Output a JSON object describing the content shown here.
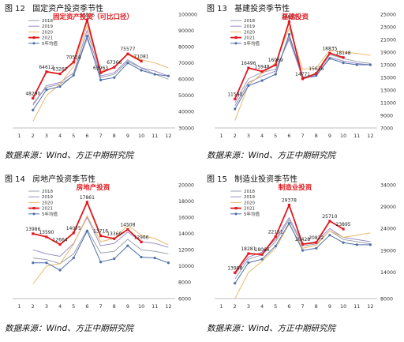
{
  "months": [
    "1",
    "2",
    "3",
    "4",
    "5",
    "6",
    "7",
    "8",
    "9",
    "10",
    "11",
    "12"
  ],
  "series_colors": {
    "2018": "#9aa3b0",
    "2019": "#9b8cc4",
    "2020": "#e9b96a",
    "2021": "#e0191f",
    "5yr": "#4f6fa8"
  },
  "source_text": "数据来源：Wind、方正中期研究院",
  "figures": [
    {
      "label": "图 12",
      "title": "固定资产投资季节性",
      "chart_data": {
        "type": "line",
        "inner_title": "固定资产投资（可比口径）",
        "x": [
          1,
          2,
          3,
          4,
          5,
          6,
          7,
          8,
          9,
          10,
          11,
          12
        ],
        "ylim": [
          30000,
          100000
        ],
        "y_ticks": [
          30000,
          40000,
          50000,
          60000,
          70000,
          80000,
          90000,
          100000
        ],
        "y_axis_side": "right",
        "legend": [
          "2018",
          "2019",
          "2020",
          "2021",
          "5年均值"
        ],
        "series": [
          {
            "name": "2018",
            "values": [
              null,
              45000,
              55000,
              57000,
              62000,
              85000,
              61000,
              63000,
              71000,
              67000,
              63000,
              60000
            ]
          },
          {
            "name": "2019",
            "values": [
              null,
              44000,
              56000,
              58000,
              64000,
              90000,
              62000,
              64000,
              72000,
              67000,
              65000,
              62000
            ]
          },
          {
            "name": "2020",
            "values": [
              null,
              34000,
              50000,
              57000,
              68000,
              93000,
              65000,
              67000,
              76000,
              72000,
              70000,
              67000
            ]
          },
          {
            "name": "2021",
            "values": [
              null,
              48290,
              64612,
              63267,
              70518,
              96526,
              63963,
              67366,
              75577,
              71081,
              null,
              null
            ]
          },
          {
            "name": "5年均值",
            "values": [
              null,
              41000,
              53500,
              55500,
              62500,
              86500,
              59500,
              61000,
              70000,
              65500,
              63000,
              62000
            ]
          }
        ],
        "data_labels": [
          {
            "series": "2021",
            "x": 2,
            "text": "48290"
          },
          {
            "series": "2021",
            "x": 3,
            "text": "64612"
          },
          {
            "series": "2021",
            "x": 4,
            "text": "63267"
          },
          {
            "series": "2021",
            "x": 5,
            "text": "70518"
          },
          {
            "series": "2021",
            "x": 6,
            "text": "96526"
          },
          {
            "series": "2021",
            "x": 7,
            "text": "63963"
          },
          {
            "series": "2021",
            "x": 8,
            "text": "67366"
          },
          {
            "series": "2021",
            "x": 9,
            "text": "75577"
          },
          {
            "series": "2021",
            "x": 10,
            "text": "71081"
          }
        ]
      }
    },
    {
      "label": "图 13",
      "title": "基建投资季节性",
      "chart_data": {
        "type": "line",
        "inner_title": "基建投资",
        "x": [
          1,
          2,
          3,
          4,
          5,
          6,
          7,
          8,
          9,
          10,
          11,
          12
        ],
        "ylim": [
          7000,
          25000
        ],
        "y_ticks": [
          7000,
          9000,
          11000,
          13000,
          15000,
          17000,
          19000,
          21000,
          23000,
          25000
        ],
        "y_axis_side": "right",
        "legend": [
          "2018",
          "2019",
          "2020",
          "2021",
          "5年均值"
        ],
        "series": [
          {
            "name": "2018",
            "values": [
              null,
              11000,
              14800,
              15800,
              16300,
              21000,
              15000,
              15500,
              18600,
              18000,
              17500,
              17200
            ]
          },
          {
            "name": "2019",
            "values": [
              null,
              10500,
              14200,
              15200,
              16000,
              21300,
              14800,
              15200,
              18200,
              17600,
              17200,
              17000
            ]
          },
          {
            "name": "2020",
            "values": [
              null,
              8200,
              13800,
              15600,
              17300,
              22800,
              16300,
              16500,
              19300,
              19000,
              18800,
              18500
            ]
          },
          {
            "name": "2021",
            "values": [
              null,
              11590,
              16496,
              15948,
              16969,
              23832,
              14771,
              15636,
              18835,
              18148,
              null,
              null
            ]
          },
          {
            "name": "5年均值",
            "values": [
              null,
              10000,
              13700,
              14500,
              15500,
              21800,
              15000,
              15300,
              18000,
              17300,
              17000,
              17000
            ]
          }
        ],
        "data_labels": [
          {
            "series": "2021",
            "x": 2,
            "text": "11590"
          },
          {
            "series": "2021",
            "x": 3,
            "text": "16496"
          },
          {
            "series": "2021",
            "x": 4,
            "text": "15948"
          },
          {
            "series": "2021",
            "x": 5,
            "text": "16969"
          },
          {
            "series": "2021",
            "x": 6,
            "text": "23832"
          },
          {
            "series": "2021",
            "x": 7,
            "text": "14771"
          },
          {
            "series": "2021",
            "x": 8,
            "text": "15636"
          },
          {
            "series": "2021",
            "x": 9,
            "text": "18835"
          },
          {
            "series": "2021",
            "x": 10,
            "text": "18148"
          }
        ]
      }
    },
    {
      "label": "图 14",
      "title": "房地产投资季节性",
      "chart_data": {
        "type": "line",
        "inner_title": "房地产投资",
        "x": [
          1,
          2,
          3,
          4,
          5,
          6,
          7,
          8,
          9,
          10,
          11,
          12
        ],
        "ylim": [
          6000,
          20000
        ],
        "y_ticks": [
          6000,
          8000,
          10000,
          12000,
          14000,
          16000,
          18000,
          20000
        ],
        "y_axis_side": "right",
        "legend": [
          "2018",
          "2019",
          "2020",
          "2021",
          "5年均值"
        ],
        "series": [
          {
            "name": "2018",
            "values": [
              null,
              11000,
              10800,
              10300,
              11500,
              14500,
              11600,
              11800,
              13300,
              12000,
              11800,
              11500
            ]
          },
          {
            "name": "2019",
            "values": [
              null,
              12000,
              11500,
              11200,
              12800,
              16000,
              12500,
              12800,
              14200,
              13000,
              12800,
              12300
            ]
          },
          {
            "name": "2020",
            "values": [
              null,
              7800,
              10000,
              10300,
              12700,
              16200,
              13000,
              13400,
              15000,
              13800,
              13400,
              12600
            ]
          },
          {
            "name": "2021",
            "values": [
              null,
              13986,
              13590,
              12664,
              14075,
              17861,
              13716,
              13369,
              14508,
              12966,
              null,
              null
            ]
          },
          {
            "name": "5年均值",
            "values": [
              null,
              10400,
              10400,
              9500,
              11000,
              14300,
              10500,
              10900,
              12500,
              11100,
              11000,
              10400
            ]
          }
        ],
        "data_labels": [
          {
            "series": "2021",
            "x": 2,
            "text": "13986"
          },
          {
            "series": "2021",
            "x": 3,
            "text": "13590"
          },
          {
            "series": "2021",
            "x": 4,
            "text": "12664"
          },
          {
            "series": "2021",
            "x": 5,
            "text": "14075"
          },
          {
            "series": "2021",
            "x": 6,
            "text": "17861"
          },
          {
            "series": "2021",
            "x": 7,
            "text": "13716"
          },
          {
            "series": "2021",
            "x": 8,
            "text": "13369"
          },
          {
            "series": "2021",
            "x": 9,
            "text": "14508"
          },
          {
            "series": "2021",
            "x": 10,
            "text": "12966"
          }
        ]
      }
    },
    {
      "label": "图 15",
      "title": "制造业投资季节性",
      "chart_data": {
        "type": "line",
        "inner_title": "制造业投资",
        "x": [
          1,
          2,
          3,
          4,
          5,
          6,
          7,
          8,
          9,
          10,
          11,
          12
        ],
        "ylim": [
          8000,
          34000
        ],
        "y_ticks": [
          8000,
          14000,
          19000,
          24000,
          29000,
          34000
        ],
        "y_axis_side": "right",
        "legend": [
          "2018",
          "2019",
          "2020",
          "2021",
          "5年均值"
        ],
        "series": [
          {
            "name": "2018",
            "values": [
              null,
              12500,
              17000,
              18000,
              21000,
              26000,
              20000,
              20500,
              23500,
              21500,
              21000,
              20500
            ]
          },
          {
            "name": "2019",
            "values": [
              null,
              13500,
              17500,
              18600,
              21500,
              26500,
              20500,
              21000,
              24000,
              22000,
              21500,
              21000
            ]
          },
          {
            "name": "2020",
            "values": [
              null,
              8000,
              14000,
              16500,
              19500,
              25000,
              19500,
              20200,
              23500,
              22000,
              22500,
              23000
            ]
          },
          {
            "name": "2021",
            "values": [
              null,
              13908,
              18281,
              18066,
              22151,
              29378,
              20428,
              20822,
              25710,
              23895,
              null,
              null
            ]
          },
          {
            "name": "5年均值",
            "values": [
              null,
              11500,
              16200,
              17000,
              20000,
              25200,
              19000,
              19500,
              22500,
              20800,
              20300,
              20300
            ]
          }
        ],
        "data_labels": [
          {
            "series": "2021",
            "x": 2,
            "text": "13908"
          },
          {
            "series": "2021",
            "x": 3,
            "text": "18281"
          },
          {
            "series": "2021",
            "x": 4,
            "text": "18066"
          },
          {
            "series": "2021",
            "x": 5,
            "text": "22151"
          },
          {
            "series": "2021",
            "x": 6,
            "text": "29378"
          },
          {
            "series": "2021",
            "x": 7,
            "text": "20428"
          },
          {
            "series": "2021",
            "x": 8,
            "text": "20822"
          },
          {
            "series": "2021",
            "x": 9,
            "text": "25710"
          },
          {
            "series": "2021",
            "x": 10,
            "text": "23895"
          }
        ]
      }
    }
  ]
}
